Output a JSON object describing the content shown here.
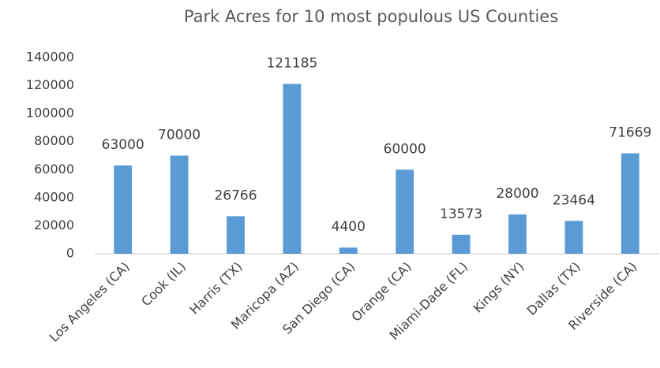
{
  "chart_data": {
    "type": "bar",
    "title": "Park Acres for 10 most populous US Counties",
    "categories": [
      "Los Angeles (CA)",
      "Cook (IL)",
      "Harris (TX)",
      "Maricopa (AZ)",
      "San Diego (CA)",
      "Orange (CA)",
      "Miami-Dade (FL)",
      "Kings (NY)",
      "Dallas (TX)",
      "Riverside (CA)"
    ],
    "values": [
      63000,
      70000,
      26766,
      121185,
      4400,
      60000,
      13573,
      28000,
      23464,
      71669
    ],
    "color": "#5b9bd5",
    "ylim": [
      0,
      140000
    ],
    "yticks": [
      0,
      20000,
      40000,
      60000,
      80000,
      100000,
      120000,
      140000
    ],
    "grid": false
  }
}
